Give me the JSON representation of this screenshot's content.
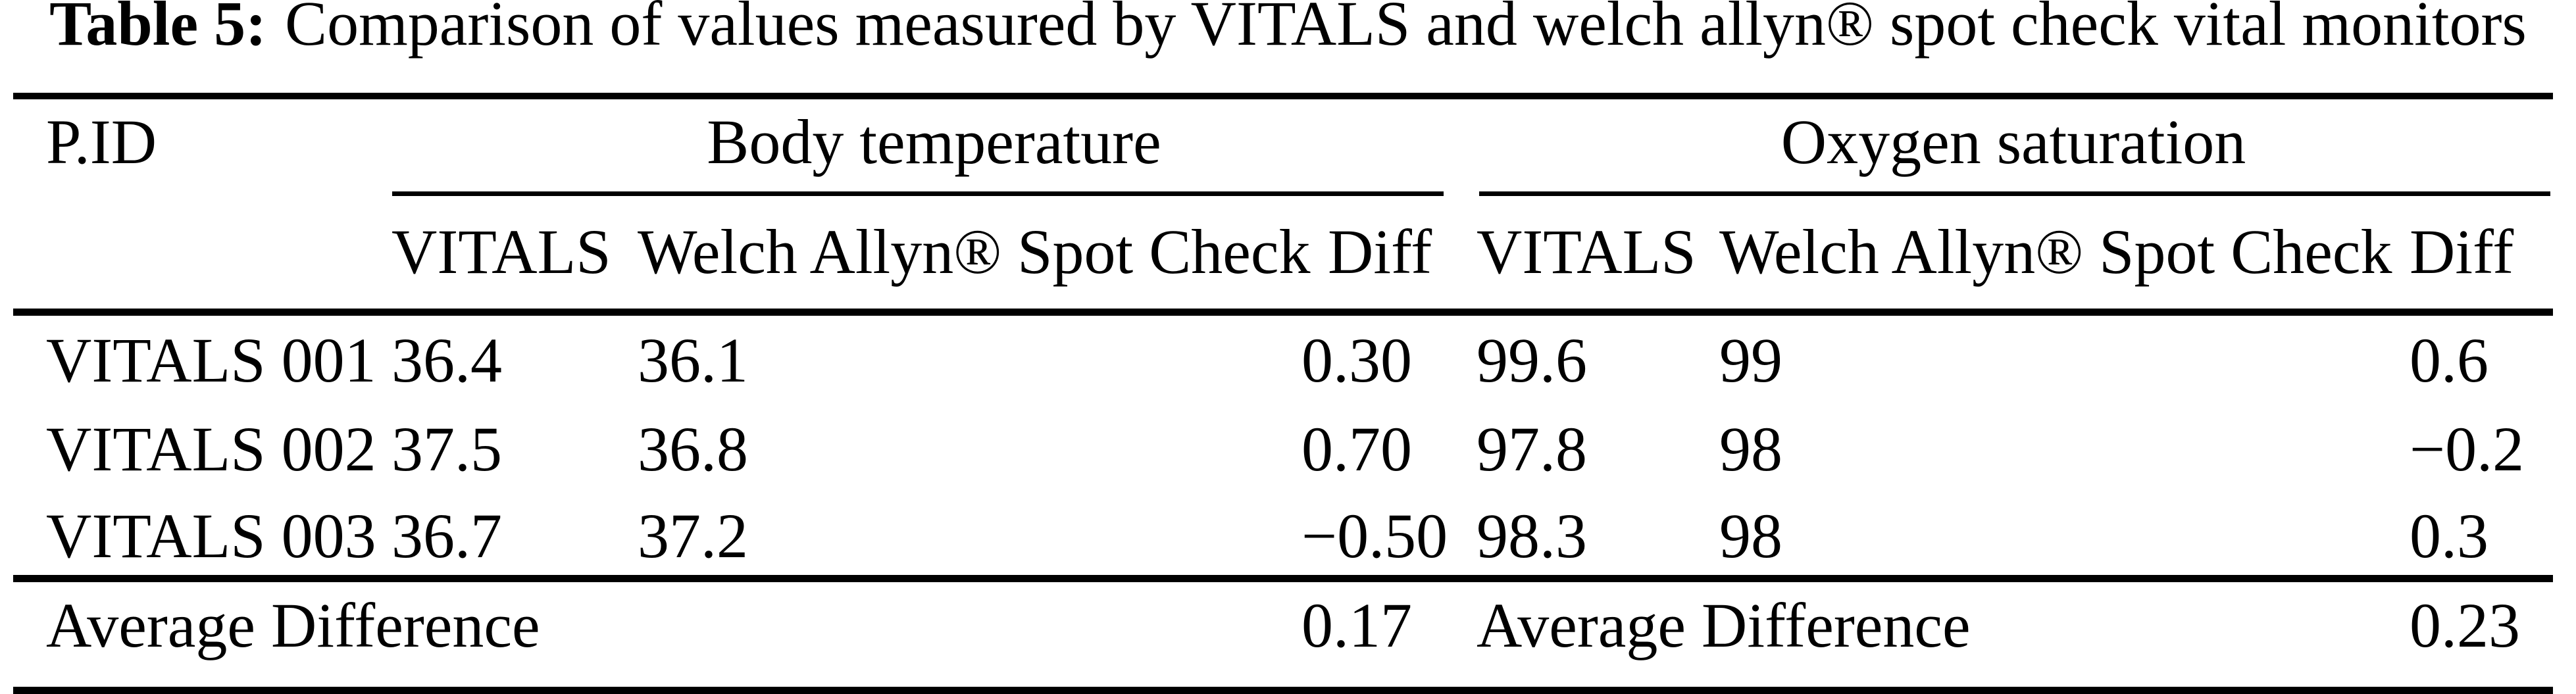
{
  "colors": {
    "text": "#000000",
    "background": "#ffffff",
    "rule": "#000000"
  },
  "caption": {
    "label": "Table 5:",
    "text": "Comparison of values measured by VITALS and welch allyn® spot check vital monitors"
  },
  "table": {
    "pid_header": "P.ID",
    "groups": {
      "body_temperature": "Body temperature",
      "oxygen_saturation": "Oxygen saturation"
    },
    "subheaders": {
      "vitals": "VITALS",
      "welch": "Welch Allyn® Spot Check",
      "diff": "Diff"
    },
    "rows": [
      {
        "pid": "VITALS 001",
        "bt_vitals": "36.4",
        "bt_welch": "36.1",
        "bt_diff": "0.30",
        "os_vitals": "99.6",
        "os_welch": "99",
        "os_diff": "0.6"
      },
      {
        "pid": "VITALS 002",
        "bt_vitals": "37.5",
        "bt_welch": "36.8",
        "bt_diff": "0.70",
        "os_vitals": "97.8",
        "os_welch": "98",
        "os_diff": "−0.2"
      },
      {
        "pid": "VITALS 003",
        "bt_vitals": "36.7",
        "bt_welch": "37.2",
        "bt_diff": "−0.50",
        "os_vitals": "98.3",
        "os_welch": "98",
        "os_diff": "0.3"
      }
    ],
    "footer": {
      "bt_label": "Average Difference",
      "bt_avg": "0.17",
      "os_label": "Average Difference",
      "os_avg": "0.23"
    }
  }
}
